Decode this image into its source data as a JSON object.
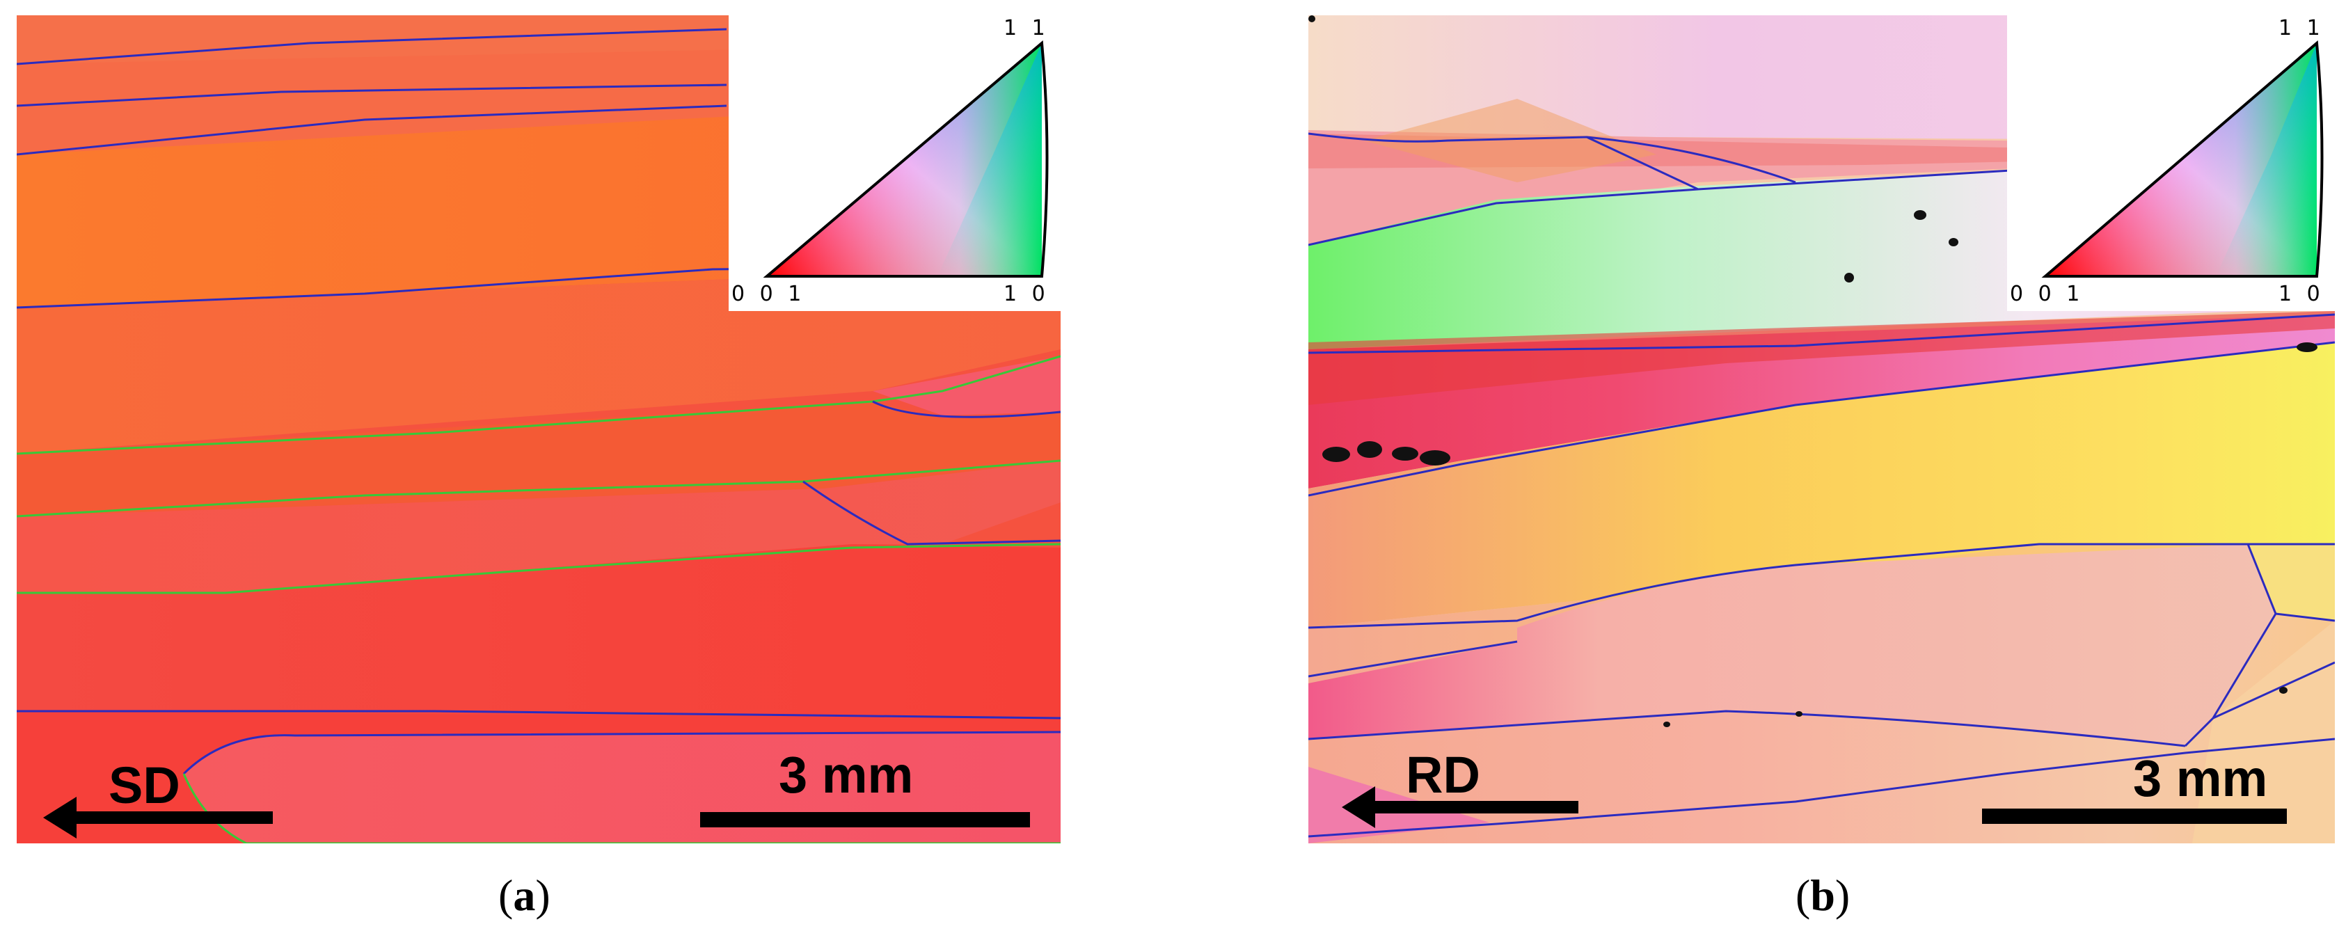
{
  "panels": [
    {
      "id": "a",
      "direction_label": "SD",
      "scale_label": "3 mm",
      "caption_open": "(",
      "caption_letter": "a",
      "caption_close": ")",
      "legend": {
        "top": "1 1 1",
        "bottom_left": "0 0 1",
        "bottom_right": "1 0 1"
      }
    },
    {
      "id": "b",
      "direction_label": "RD",
      "scale_label": "3 mm",
      "caption_open": "(",
      "caption_letter": "b",
      "caption_close": ")",
      "legend": {
        "top": "1 1 1",
        "bottom_left": "0 0 1",
        "bottom_right": "1 0 1"
      }
    }
  ],
  "colors": {
    "grain_boundary_high": "#2b2bbf",
    "grain_boundary_low": "#38c838",
    "scale_bar": "#000000"
  }
}
